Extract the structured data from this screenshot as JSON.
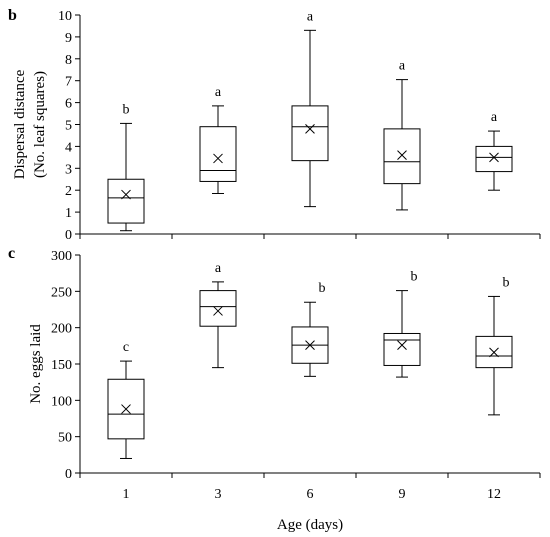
{
  "chart_data": [
    {
      "type": "box",
      "panel_label": "b",
      "title": "",
      "xlabel": "",
      "ylabel_lines": [
        "Dispersal distance",
        "(No. leaf squares)"
      ],
      "ylim": [
        0,
        10
      ],
      "yticks": [
        0,
        1,
        2,
        3,
        4,
        5,
        6,
        7,
        8,
        9,
        10
      ],
      "categories": [
        "1",
        "3",
        "6",
        "9",
        "12"
      ],
      "boxes": [
        {
          "whisker_low": 0.15,
          "q1": 0.5,
          "median": 1.65,
          "q3": 2.5,
          "whisker_high": 5.05,
          "mean": 1.8,
          "letter": "b"
        },
        {
          "whisker_low": 1.85,
          "q1": 2.4,
          "median": 2.9,
          "q3": 4.9,
          "whisker_high": 5.85,
          "mean": 3.45,
          "letter": "a"
        },
        {
          "whisker_low": 1.25,
          "q1": 3.35,
          "median": 4.9,
          "q3": 5.85,
          "whisker_high": 9.3,
          "mean": 4.8,
          "letter": "a"
        },
        {
          "whisker_low": 1.1,
          "q1": 2.3,
          "median": 3.3,
          "q3": 4.8,
          "whisker_high": 7.05,
          "mean": 3.6,
          "letter": "a"
        },
        {
          "whisker_low": 2.0,
          "q1": 2.85,
          "median": 3.5,
          "q3": 4.0,
          "whisker_high": 4.7,
          "mean": 3.5,
          "letter": "a"
        }
      ]
    },
    {
      "type": "box",
      "panel_label": "c",
      "title": "",
      "xlabel": "Age (days)",
      "ylabel_lines": [
        "No. eggs laid"
      ],
      "ylim": [
        0,
        300
      ],
      "yticks": [
        0,
        50,
        100,
        150,
        200,
        250,
        300
      ],
      "categories": [
        "1",
        "3",
        "6",
        "9",
        "12"
      ],
      "boxes": [
        {
          "whisker_low": 20,
          "q1": 47,
          "median": 81,
          "q3": 129,
          "whisker_high": 154,
          "mean": 88,
          "letter": "c"
        },
        {
          "whisker_low": 145,
          "q1": 202,
          "median": 229,
          "q3": 251,
          "whisker_high": 263,
          "mean": 223,
          "letter": "a"
        },
        {
          "whisker_low": 133,
          "q1": 151,
          "median": 176,
          "q3": 201,
          "whisker_high": 235,
          "mean": 176,
          "letter": "b"
        },
        {
          "whisker_low": 132,
          "q1": 148,
          "median": 183,
          "q3": 192,
          "whisker_high": 251,
          "mean": 176,
          "letter": "b"
        },
        {
          "whisker_low": 80,
          "q1": 145,
          "median": 161,
          "q3": 188,
          "whisker_high": 243,
          "mean": 166,
          "letter": "b"
        }
      ]
    }
  ]
}
